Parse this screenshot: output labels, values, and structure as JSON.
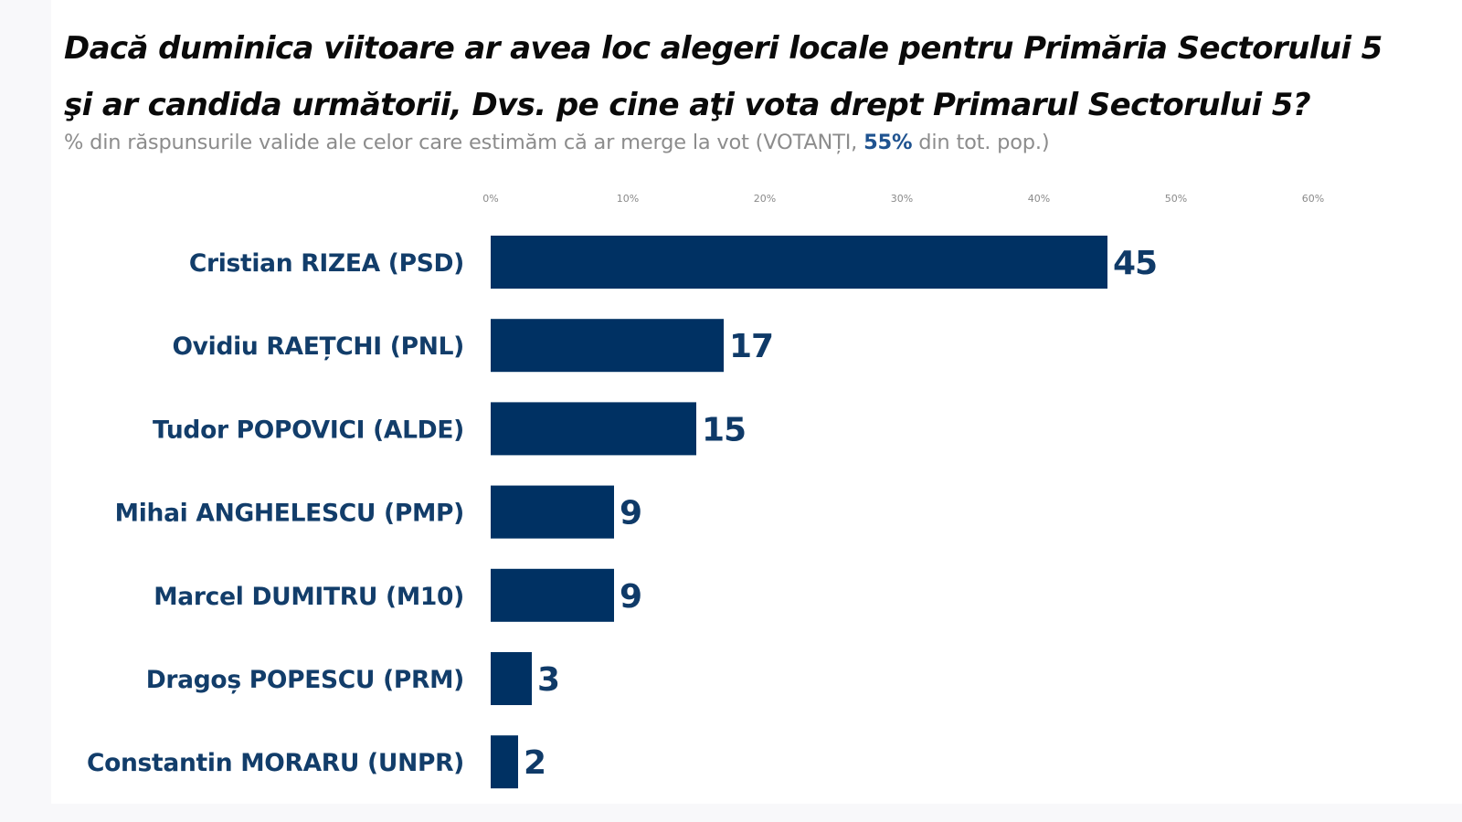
{
  "header": {
    "title_line1": "Dacă duminica viitoare ar avea loc alegeri locale pentru Primăria Sectorului 5",
    "title_line2": "şi ar candida următorii, Dvs. pe cine aţi vota drept Primarul Sectorului 5?",
    "subtitle_prefix": "% din răspunsurile valide ale celor care estimăm că ar merge la vot (VOTANȚI, ",
    "subtitle_highlight": "55%",
    "subtitle_suffix": " din tot. pop.)"
  },
  "colors": {
    "bar": "#003163",
    "label": "#123d6a",
    "highlight": "#1f5390",
    "subtitle": "#8c8c8c"
  },
  "chart_data": {
    "type": "bar",
    "orientation": "horizontal",
    "title": "Dacă duminica viitoare ar avea loc alegeri locale pentru Primăria Sectorului 5 şi ar candida următorii, Dvs. pe cine aţi vota drept Primarul Sectorului 5?",
    "subtitle": "% din răspunsurile valide ale celor care estimăm că ar merge la vot (VOTANȚI, 55% din tot. pop.)",
    "categories": [
      "Cristian RIZEA (PSD)",
      "Ovidiu RAEȚCHI (PNL)",
      "Tudor POPOVICI (ALDE)",
      "Mihai ANGHELESCU (PMP)",
      "Marcel DUMITRU (M10)",
      "Dragoș POPESCU (PRM)",
      "Constantin MORARU (UNPR)"
    ],
    "values": [
      45,
      17,
      15,
      9,
      9,
      3,
      2
    ],
    "data_labels": [
      "45",
      "17",
      "15",
      "9",
      "9",
      "3",
      "2"
    ],
    "xlabel": "",
    "ylabel": "",
    "xlim": [
      0,
      60
    ],
    "x_ticks": [
      0,
      10,
      20,
      30,
      40,
      50,
      60
    ],
    "x_tick_labels": [
      "0%",
      "10%",
      "20%",
      "30%",
      "40%",
      "50%",
      "60%"
    ],
    "x_axis_position": "top",
    "grid": false,
    "legend": "none"
  }
}
